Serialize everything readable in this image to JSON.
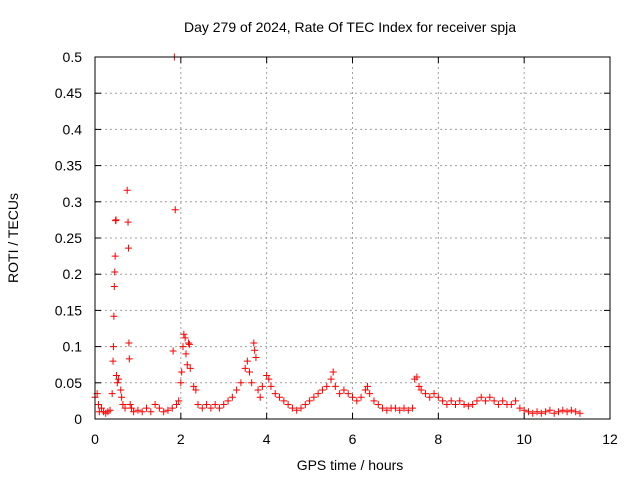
{
  "chart_data": {
    "type": "scatter",
    "title": "Day 279 of 2024, Rate Of TEC Index for receiver spja",
    "xlabel": "GPS time / hours",
    "ylabel": "ROTI / TECUs",
    "xlim": [
      0,
      12
    ],
    "ylim": [
      0,
      0.5
    ],
    "xticks": [
      0,
      2,
      4,
      6,
      8,
      10,
      12
    ],
    "xtick_labels": [
      "0",
      "2",
      "4",
      "6",
      "8",
      "10",
      "12"
    ],
    "yticks": [
      0,
      0.05,
      0.1,
      0.15,
      0.2,
      0.25,
      0.3,
      0.35,
      0.4,
      0.45,
      0.5
    ],
    "ytick_labels": [
      "0",
      "0.05",
      "0.1",
      "0.15",
      "0.2",
      "0.25",
      "0.3",
      "0.35",
      "0.4",
      "0.45",
      "0.5"
    ],
    "grid": true,
    "marker": "+",
    "color": "#ff0000",
    "series": [
      {
        "name": "ROTI",
        "points": [
          [
            0.0,
            0.03
          ],
          [
            0.05,
            0.035
          ],
          [
            0.08,
            0.02
          ],
          [
            0.1,
            0.01
          ],
          [
            0.15,
            0.015
          ],
          [
            0.2,
            0.01
          ],
          [
            0.25,
            0.008
          ],
          [
            0.3,
            0.01
          ],
          [
            0.35,
            0.012
          ],
          [
            0.4,
            0.035
          ],
          [
            0.42,
            0.08
          ],
          [
            0.43,
            0.1
          ],
          [
            0.44,
            0.142
          ],
          [
            0.45,
            0.183
          ],
          [
            0.46,
            0.203
          ],
          [
            0.47,
            0.225
          ],
          [
            0.48,
            0.274
          ],
          [
            0.49,
            0.275
          ],
          [
            0.5,
            0.06
          ],
          [
            0.52,
            0.05
          ],
          [
            0.55,
            0.055
          ],
          [
            0.6,
            0.04
          ],
          [
            0.62,
            0.03
          ],
          [
            0.65,
            0.02
          ],
          [
            0.7,
            0.015
          ],
          [
            0.75,
            0.316
          ],
          [
            0.77,
            0.272
          ],
          [
            0.78,
            0.236
          ],
          [
            0.79,
            0.105
          ],
          [
            0.8,
            0.083
          ],
          [
            0.82,
            0.02
          ],
          [
            0.85,
            0.015
          ],
          [
            0.9,
            0.01
          ],
          [
            1.0,
            0.012
          ],
          [
            1.1,
            0.01
          ],
          [
            1.2,
            0.015
          ],
          [
            1.3,
            0.01
          ],
          [
            1.4,
            0.02
          ],
          [
            1.5,
            0.015
          ],
          [
            1.6,
            0.01
          ],
          [
            1.7,
            0.012
          ],
          [
            1.8,
            0.015
          ],
          [
            1.82,
            0.094
          ],
          [
            1.85,
            0.5
          ],
          [
            1.87,
            0.289
          ],
          [
            1.9,
            0.02
          ],
          [
            1.95,
            0.025
          ],
          [
            2.0,
            0.05
          ],
          [
            2.02,
            0.065
          ],
          [
            2.05,
            0.1
          ],
          [
            2.07,
            0.117
          ],
          [
            2.1,
            0.112
          ],
          [
            2.12,
            0.09
          ],
          [
            2.15,
            0.075
          ],
          [
            2.18,
            0.105
          ],
          [
            2.2,
            0.103
          ],
          [
            2.22,
            0.07
          ],
          [
            2.3,
            0.045
          ],
          [
            2.35,
            0.04
          ],
          [
            2.4,
            0.02
          ],
          [
            2.5,
            0.015
          ],
          [
            2.6,
            0.02
          ],
          [
            2.7,
            0.015
          ],
          [
            2.8,
            0.02
          ],
          [
            2.9,
            0.015
          ],
          [
            3.0,
            0.02
          ],
          [
            3.1,
            0.025
          ],
          [
            3.2,
            0.03
          ],
          [
            3.3,
            0.04
          ],
          [
            3.4,
            0.05
          ],
          [
            3.5,
            0.07
          ],
          [
            3.55,
            0.08
          ],
          [
            3.6,
            0.065
          ],
          [
            3.65,
            0.05
          ],
          [
            3.7,
            0.105
          ],
          [
            3.72,
            0.095
          ],
          [
            3.75,
            0.085
          ],
          [
            3.8,
            0.04
          ],
          [
            3.85,
            0.03
          ],
          [
            3.9,
            0.045
          ],
          [
            4.0,
            0.06
          ],
          [
            4.05,
            0.055
          ],
          [
            4.1,
            0.045
          ],
          [
            4.2,
            0.035
          ],
          [
            4.3,
            0.03
          ],
          [
            4.4,
            0.025
          ],
          [
            4.5,
            0.02
          ],
          [
            4.6,
            0.015
          ],
          [
            4.7,
            0.012
          ],
          [
            4.8,
            0.015
          ],
          [
            4.9,
            0.02
          ],
          [
            5.0,
            0.025
          ],
          [
            5.1,
            0.03
          ],
          [
            5.2,
            0.035
          ],
          [
            5.3,
            0.04
          ],
          [
            5.4,
            0.045
          ],
          [
            5.5,
            0.055
          ],
          [
            5.55,
            0.065
          ],
          [
            5.6,
            0.045
          ],
          [
            5.7,
            0.035
          ],
          [
            5.8,
            0.04
          ],
          [
            5.9,
            0.035
          ],
          [
            6.0,
            0.03
          ],
          [
            6.1,
            0.025
          ],
          [
            6.2,
            0.03
          ],
          [
            6.3,
            0.04
          ],
          [
            6.35,
            0.045
          ],
          [
            6.4,
            0.035
          ],
          [
            6.5,
            0.025
          ],
          [
            6.6,
            0.02
          ],
          [
            6.7,
            0.015
          ],
          [
            6.8,
            0.012
          ],
          [
            6.9,
            0.015
          ],
          [
            7.0,
            0.015
          ],
          [
            7.1,
            0.012
          ],
          [
            7.2,
            0.015
          ],
          [
            7.3,
            0.012
          ],
          [
            7.4,
            0.015
          ],
          [
            7.45,
            0.055
          ],
          [
            7.5,
            0.058
          ],
          [
            7.55,
            0.045
          ],
          [
            7.6,
            0.04
          ],
          [
            7.7,
            0.035
          ],
          [
            7.8,
            0.03
          ],
          [
            7.9,
            0.035
          ],
          [
            8.0,
            0.03
          ],
          [
            8.1,
            0.025
          ],
          [
            8.2,
            0.02
          ],
          [
            8.3,
            0.025
          ],
          [
            8.4,
            0.02
          ],
          [
            8.5,
            0.025
          ],
          [
            8.6,
            0.02
          ],
          [
            8.7,
            0.018
          ],
          [
            8.8,
            0.02
          ],
          [
            8.9,
            0.025
          ],
          [
            9.0,
            0.03
          ],
          [
            9.1,
            0.025
          ],
          [
            9.2,
            0.03
          ],
          [
            9.3,
            0.025
          ],
          [
            9.4,
            0.02
          ],
          [
            9.5,
            0.025
          ],
          [
            9.6,
            0.02
          ],
          [
            9.7,
            0.02
          ],
          [
            9.8,
            0.025
          ],
          [
            9.9,
            0.015
          ],
          [
            10.0,
            0.012
          ],
          [
            10.1,
            0.01
          ],
          [
            10.2,
            0.008
          ],
          [
            10.3,
            0.01
          ],
          [
            10.4,
            0.008
          ],
          [
            10.5,
            0.01
          ],
          [
            10.6,
            0.012
          ],
          [
            10.7,
            0.008
          ],
          [
            10.8,
            0.01
          ],
          [
            10.9,
            0.012
          ],
          [
            11.0,
            0.01
          ],
          [
            11.1,
            0.012
          ],
          [
            11.2,
            0.01
          ],
          [
            11.3,
            0.008
          ]
        ]
      }
    ]
  }
}
